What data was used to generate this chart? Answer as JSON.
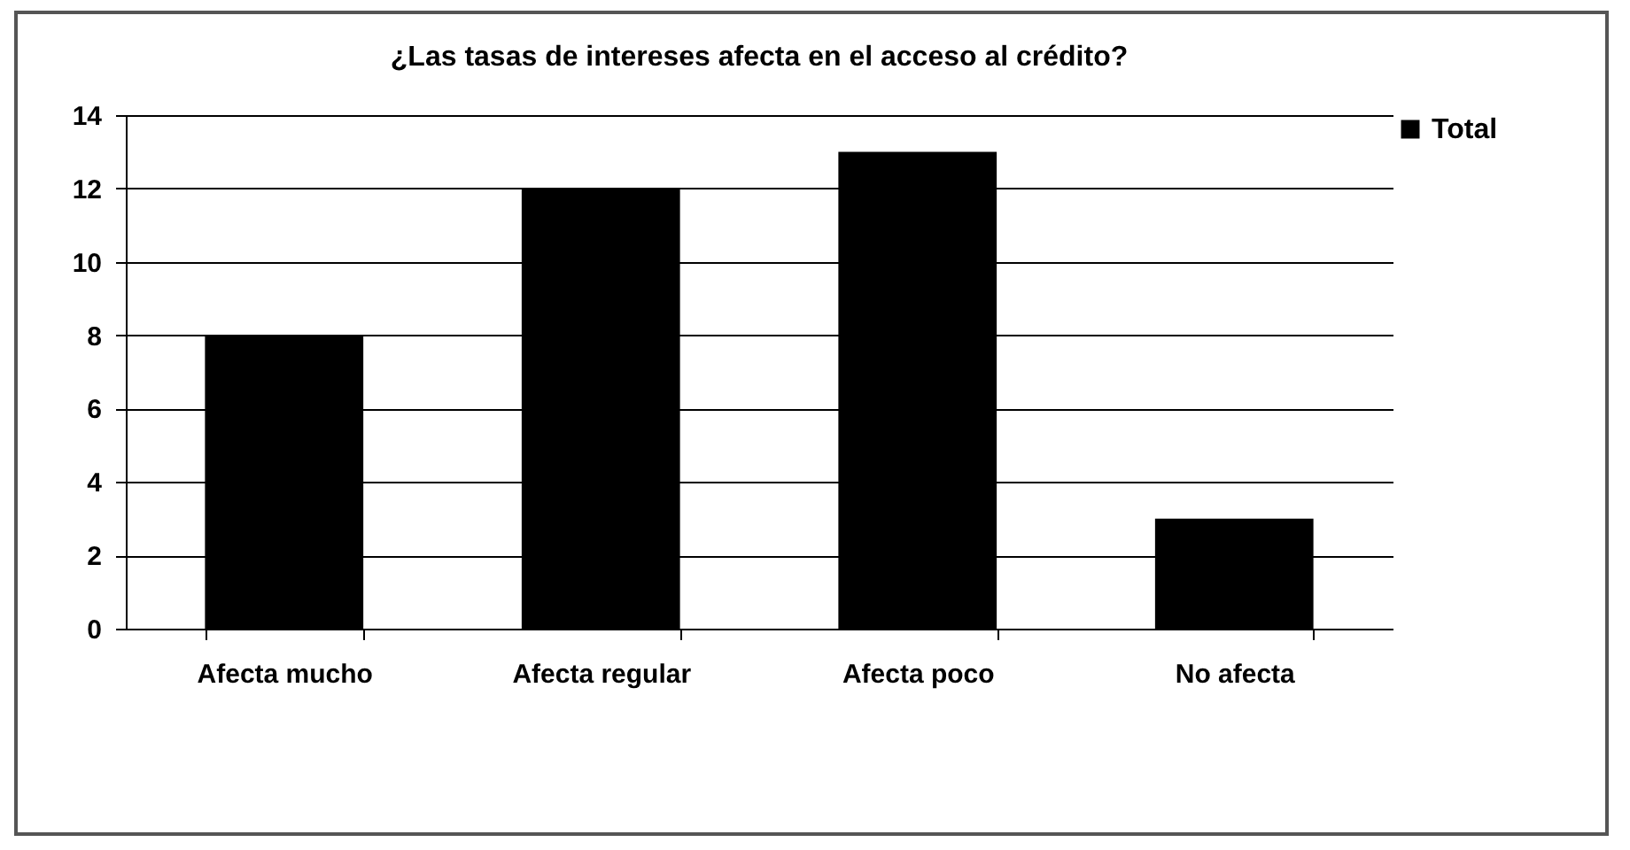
{
  "chart_data": {
    "type": "bar",
    "title": "¿Las tasas de intereses afecta en el acceso al crédito?",
    "categories": [
      "Afecta mucho",
      "Afecta regular",
      "Afecta poco",
      "No afecta"
    ],
    "series": [
      {
        "name": "Total",
        "color": "#000000",
        "values": [
          8,
          12,
          13,
          3
        ]
      }
    ],
    "ylim": [
      0,
      14
    ],
    "yticks": [
      0,
      2,
      4,
      6,
      8,
      10,
      12,
      14
    ],
    "grid": "y",
    "legend": "right"
  }
}
